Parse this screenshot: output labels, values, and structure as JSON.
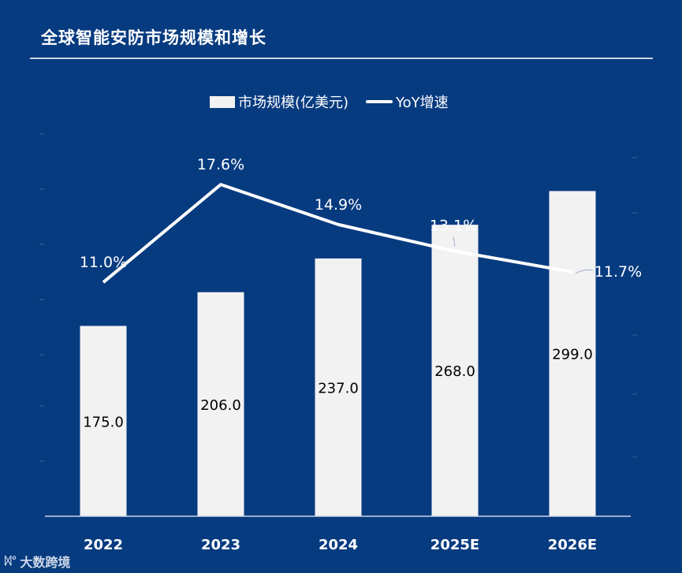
{
  "title": "全球智能安防市场规模和增长",
  "legend": {
    "bar_label": "市场规模(亿美元)",
    "line_label": "YoY增速"
  },
  "watermark": {
    "text": "大数跨境",
    "icon": "logo-icon"
  },
  "colors": {
    "background": "#073b80",
    "bar": "#f2f2f2",
    "line": "#ffffff",
    "bar_label": "#000000",
    "text": "#ffffff"
  },
  "chart_data": {
    "type": "bar",
    "title": "全球智能安防市场规模和增长",
    "categories": [
      "2022",
      "2023",
      "2024",
      "2025E",
      "2026E"
    ],
    "series": [
      {
        "name": "市场规模(亿美元)",
        "type": "bar",
        "values": [
          175.0,
          206.0,
          237.0,
          268.0,
          299.0
        ],
        "labels": [
          "175.0",
          "206.0",
          "237.0",
          "268.0",
          "299.0"
        ]
      },
      {
        "name": "YoY增速",
        "type": "line",
        "values": [
          11.0,
          17.6,
          14.9,
          13.1,
          11.7
        ],
        "labels": [
          "11.0%",
          "17.6%",
          "14.9%",
          "13.1%",
          "11.7%"
        ]
      }
    ],
    "xlabel": "",
    "ylabel": "",
    "legend_position": "top-center"
  }
}
